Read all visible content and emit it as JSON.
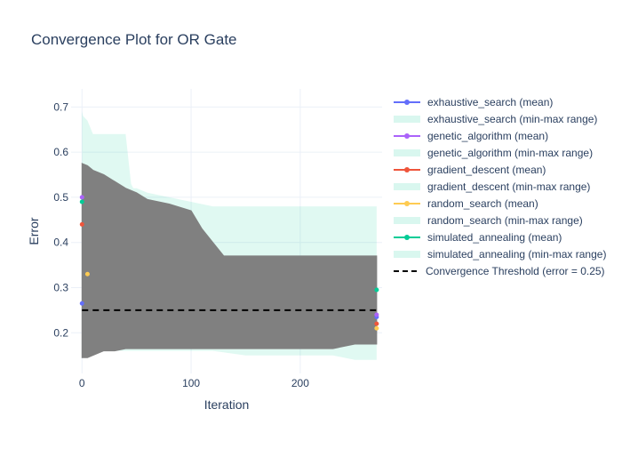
{
  "chart_data": {
    "type": "line",
    "title": "Convergence Plot for OR Gate",
    "xlabel": "Iteration",
    "ylabel": "Error",
    "xlim": [
      -10,
      275
    ],
    "ylim": [
      0.11,
      0.74
    ],
    "xticks": [
      0,
      100,
      200
    ],
    "yticks": [
      0.2,
      0.3,
      0.4,
      0.5,
      0.6,
      0.7
    ],
    "ytick_labels": [
      "0.2",
      "0.3",
      "0.4",
      "0.5",
      "0.6",
      "0.7"
    ],
    "xtick_labels": [
      "0",
      "100",
      "200"
    ],
    "grid": true,
    "legend_position": "right",
    "threshold": {
      "name": "Convergence Threshold (error = 0.25)",
      "value": 0.25,
      "color": "#000000"
    },
    "series": [
      {
        "name": "exhaustive_search (mean)",
        "range_name": "exhaustive_search (min-max range)",
        "color": "#636efa",
        "x": [
          0,
          270
        ],
        "y": [
          0.265,
          0.235
        ]
      },
      {
        "name": "genetic_algorithm (mean)",
        "range_name": "genetic_algorithm (min-max range)",
        "color": "#ab63fa",
        "x": [
          0,
          270
        ],
        "y": [
          0.5,
          0.24
        ]
      },
      {
        "name": "gradient_descent (mean)",
        "range_name": "gradient_descent (min-max range)",
        "color": "#ef553b",
        "x": [
          0,
          270
        ],
        "y": [
          0.44,
          0.22
        ]
      },
      {
        "name": "random_search (mean)",
        "range_name": "random_search (min-max range)",
        "color": "#fecb52",
        "x": [
          5,
          270
        ],
        "y": [
          0.33,
          0.21
        ]
      },
      {
        "name": "simulated_annealing (mean)",
        "range_name": "simulated_annealing (min-max range)",
        "color": "#00cc96",
        "x": [
          0,
          270
        ],
        "y": [
          0.49,
          0.295
        ]
      }
    ],
    "range_band": {
      "color": "#00cc96",
      "x": [
        0,
        1,
        5,
        10,
        20,
        30,
        40,
        45,
        47,
        50,
        60,
        80,
        100,
        120,
        150,
        180,
        200,
        230,
        250,
        270
      ],
      "upper": [
        0.69,
        0.68,
        0.67,
        0.64,
        0.64,
        0.64,
        0.64,
        0.53,
        0.52,
        0.52,
        0.51,
        0.5,
        0.49,
        0.48,
        0.48,
        0.48,
        0.48,
        0.48,
        0.48,
        0.48
      ],
      "lower": [
        0.18,
        0.17,
        0.16,
        0.16,
        0.16,
        0.16,
        0.16,
        0.16,
        0.16,
        0.16,
        0.16,
        0.16,
        0.16,
        0.16,
        0.15,
        0.15,
        0.15,
        0.15,
        0.14,
        0.14
      ]
    },
    "dense_overlay": {
      "color": "#808080",
      "x": [
        0,
        5,
        10,
        20,
        30,
        40,
        50,
        60,
        80,
        100,
        110,
        120,
        130,
        150,
        180,
        200,
        230,
        250,
        270
      ],
      "upper": [
        0.575,
        0.57,
        0.56,
        0.55,
        0.535,
        0.52,
        0.51,
        0.495,
        0.485,
        0.47,
        0.43,
        0.4,
        0.37,
        0.37,
        0.37,
        0.37,
        0.37,
        0.37,
        0.37
      ],
      "lower": [
        0.145,
        0.145,
        0.15,
        0.16,
        0.16,
        0.165,
        0.165,
        0.165,
        0.165,
        0.165,
        0.165,
        0.165,
        0.165,
        0.165,
        0.165,
        0.165,
        0.165,
        0.175,
        0.175
      ]
    }
  }
}
